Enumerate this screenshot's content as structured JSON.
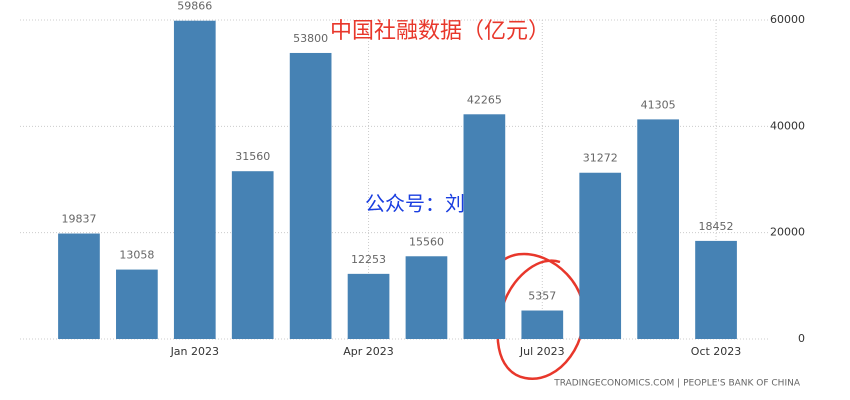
{
  "chart_data": {
    "type": "bar",
    "title": "中国社融数据（亿元）",
    "annotation": "公众号：刘教链",
    "source": "TRADINGECONOMICS.COM | PEOPLE'S BANK OF CHINA",
    "categories": [
      null,
      null,
      "Jan 2023",
      null,
      null,
      "Apr 2023",
      null,
      null,
      "Jul 2023",
      null,
      null,
      "Oct 2023"
    ],
    "values": [
      19837,
      13058,
      59866,
      31560,
      53800,
      12253,
      15560,
      42265,
      5357,
      31272,
      41305,
      18452
    ],
    "color": "#4682b4",
    "ylim": [
      0,
      60000
    ],
    "yticks": [
      0,
      20000,
      40000,
      60000
    ],
    "grid": true
  }
}
